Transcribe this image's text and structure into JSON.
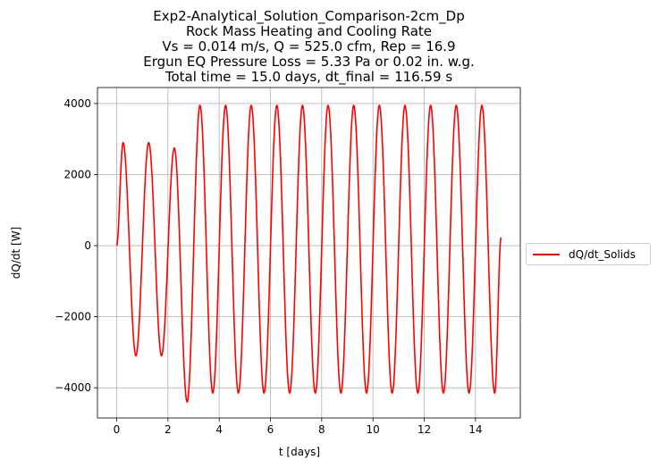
{
  "chart_data": {
    "type": "line",
    "title_lines": [
      "Exp2-Analytical_Solution_Comparison-2cm_Dp",
      "Rock Mass Heating and Cooling Rate",
      "Vs = 0.014 m/s, Q = 525.0 cfm, Rep = 16.9",
      "Ergun EQ Pressure Loss = 5.33 Pa or 0.02 in. w.g.",
      "Total time = 15.0 days, dt_final = 116.59 s"
    ],
    "xlabel": "t [days]",
    "ylabel": "dQ/dt [W]",
    "xlim": [
      -0.75,
      15.75
    ],
    "ylim": [
      -4850,
      4450
    ],
    "xticks": [
      0,
      2,
      4,
      6,
      8,
      10,
      12,
      14
    ],
    "yticks": [
      -4000,
      -2000,
      0,
      2000,
      4000
    ],
    "xtick_labels": [
      "0",
      "2",
      "4",
      "6",
      "8",
      "10",
      "12",
      "14"
    ],
    "ytick_labels": [
      "−4000",
      "−2000",
      "0",
      "2000",
      "4000"
    ],
    "grid": true,
    "legend_position": "right-outside",
    "series": [
      {
        "name": "dQ/dt_Solids",
        "color": "#ff0000",
        "x": [
          0,
          0.25,
          0.75,
          1.25,
          1.75,
          2.25,
          2.75,
          3.25,
          3.75,
          4.25,
          4.75,
          5.25,
          5.75,
          6.25,
          6.75,
          7.25,
          7.75,
          8.25,
          8.75,
          9.25,
          9.75,
          10.25,
          10.75,
          11.25,
          11.75,
          12.25,
          12.75,
          13.25,
          13.75,
          14.25,
          14.75,
          15.0
        ],
        "y": [
          0,
          2900,
          -3100,
          2900,
          -3100,
          2750,
          -4400,
          3950,
          -4150,
          3950,
          -4150,
          3950,
          -4150,
          3950,
          -4150,
          3950,
          -4150,
          3950,
          -4150,
          3950,
          -4150,
          3950,
          -4150,
          3950,
          -4150,
          3950,
          -4150,
          3950,
          -4150,
          3950,
          -4150,
          230
        ]
      }
    ]
  }
}
